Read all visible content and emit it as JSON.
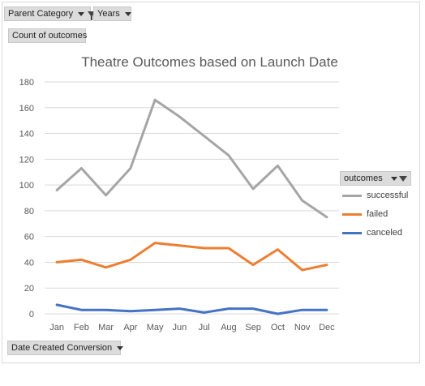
{
  "filters": {
    "parent_category": "Parent Category",
    "years": "Years",
    "values_field": "Count of outcomes",
    "axis_field": "Date Created Conversion",
    "legend_field": "outcomes"
  },
  "colors": {
    "successful": "#a5a5a5",
    "failed": "#ed7d31",
    "canceled": "#4472c4",
    "gridline": "#d9d9d9"
  },
  "chart_data": {
    "type": "line",
    "title": "Theatre Outcomes based  on Launch Date",
    "xlabel": "",
    "ylabel": "",
    "categories": [
      "Jan",
      "Feb",
      "Mar",
      "Apr",
      "May",
      "Jun",
      "Jul",
      "Aug",
      "Sep",
      "Oct",
      "Nov",
      "Dec"
    ],
    "ylim": [
      0,
      180
    ],
    "yticks": [
      0,
      20,
      40,
      60,
      80,
      100,
      120,
      140,
      160,
      180
    ],
    "grid": true,
    "legend_position": "right",
    "series": [
      {
        "name": "successful",
        "values": [
          96,
          113,
          92,
          113,
          166,
          153,
          138,
          123,
          97,
          115,
          88,
          75
        ]
      },
      {
        "name": "failed",
        "values": [
          40,
          42,
          36,
          42,
          55,
          53,
          51,
          51,
          38,
          50,
          34,
          38
        ]
      },
      {
        "name": "canceled",
        "values": [
          7,
          3,
          3,
          2,
          3,
          4,
          1,
          4,
          4,
          0,
          3,
          3
        ]
      }
    ]
  }
}
